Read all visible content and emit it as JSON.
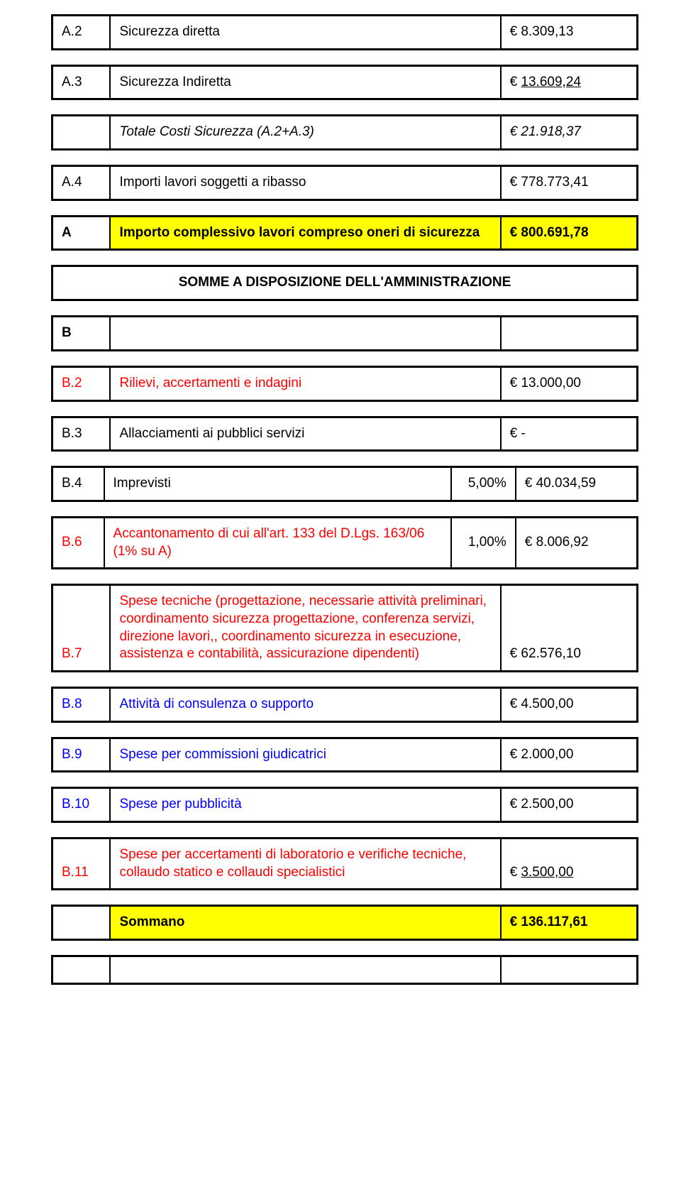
{
  "currency": "€",
  "colors": {
    "highlight_bg": "#ffff00",
    "red_text": "#ff0000",
    "blue_text": "#0000ff",
    "border": "#000000",
    "bg": "#ffffff"
  },
  "rows": {
    "a2": {
      "code": "A.2",
      "label": "Sicurezza diretta",
      "value": "8.309,13"
    },
    "a3": {
      "code": "A.3",
      "label": "Sicurezza Indiretta",
      "value": "13.609,24"
    },
    "atot": {
      "label": "Totale Costi Sicurezza (A.2+A.3)",
      "value": "21.918,37"
    },
    "a4": {
      "code": "A.4",
      "label": "Importi lavori soggetti a ribasso",
      "value": "778.773,41"
    },
    "a": {
      "code": "A",
      "label": "Importo complessivo lavori compreso oneri di sicurezza",
      "value": "800.691,78"
    },
    "section_b_header": "SOMME A DISPOSIZIONE DELL'AMMINISTRAZIONE",
    "b": {
      "code": "B"
    },
    "b2": {
      "code": "B.2",
      "label": "Rilievi, accertamenti e indagini",
      "value": "13.000,00"
    },
    "b3": {
      "code": "B.3",
      "label": "Allacciamenti ai pubblici servizi",
      "value": "-"
    },
    "b4": {
      "code": "B.4",
      "label": "Imprevisti",
      "pct": "5,00%",
      "value": "40.034,59"
    },
    "b6": {
      "code": "B.6",
      "label": "Accantonamento di cui all'art. 133 del D.Lgs. 163/06 (1% su A)",
      "pct": "1,00%",
      "value": "8.006,92"
    },
    "b7": {
      "code": "B.7",
      "label": "Spese tecniche (progettazione, necessarie attività preliminari, coordinamento sicurezza progettazione, conferenza servizi, direzione lavori,, coordinamento sicurezza in esecuzione, assistenza e contabilità, assicurazione dipendenti)",
      "value": "62.576,10"
    },
    "b8": {
      "code": "B.8",
      "label": "Attività di consulenza o supporto",
      "value": "4.500,00"
    },
    "b9": {
      "code": "B.9",
      "label": "Spese per commissioni giudicatrici",
      "value": "2.000,00"
    },
    "b10": {
      "code": "B.10",
      "label": "Spese per pubblicità",
      "value": "2.500,00"
    },
    "b11": {
      "code": "B.11",
      "label": "Spese per accertamenti di laboratorio e verifiche tecniche, collaudo statico e collaudi specialistici",
      "value": "3.500,00"
    },
    "bsum": {
      "label": "Sommano",
      "value": "136.117,61"
    }
  }
}
